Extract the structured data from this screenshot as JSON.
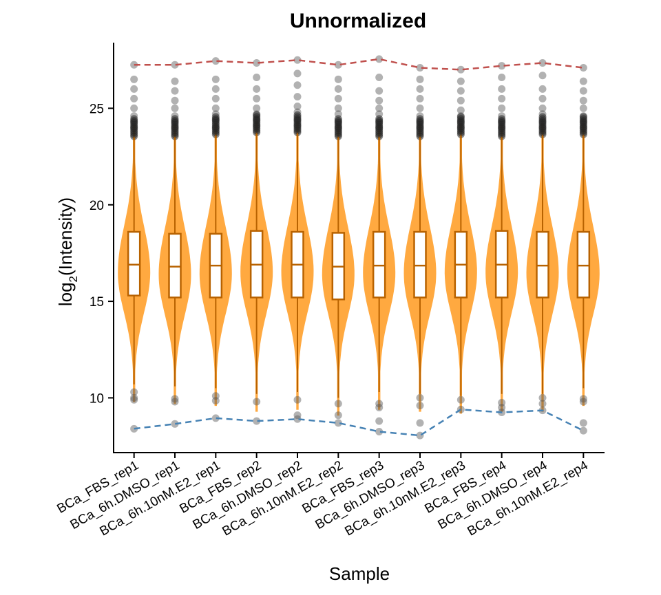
{
  "chart_data": {
    "type": "violin",
    "title": "Unnormalized",
    "xlabel": "Sample",
    "ylabel_main": "log",
    "ylabel_sub": "2",
    "ylabel_rest": "(Intensity)",
    "ylim": [
      7.2,
      28.4
    ],
    "yticks": [
      10,
      15,
      20,
      25
    ],
    "grid": false,
    "colors": {
      "violin_fill": "#ffa940",
      "box_line": "#b86200",
      "outlier": "#555555",
      "max_line": "#c0504d",
      "min_line": "#4682b4"
    },
    "categories": [
      "BCa_FBS_rep1",
      "BCa_6h.DMSO_rep1",
      "BCa_6h.10nM.E2_rep1",
      "BCa_FBS_rep2",
      "BCa_6h.DMSO_rep2",
      "BCa_6h.10nM.E2_rep2",
      "BCa_FBS_rep3",
      "BCa_6h.DMSO_rep3",
      "BCa_6h.10nM.E2_rep3",
      "BCa_FBS_rep4",
      "BCa_6h.DMSO_rep4",
      "BCa_6h.10nM.E2_rep4"
    ],
    "stats": [
      {
        "q1": 15.3,
        "median": 16.9,
        "q3": 18.6,
        "whisker_low": 10.7,
        "whisker_high": 23.5,
        "min": 8.4,
        "max": 27.25
      },
      {
        "q1": 15.2,
        "median": 16.8,
        "q3": 18.5,
        "whisker_low": 10.6,
        "whisker_high": 23.5,
        "min": 8.65,
        "max": 27.25
      },
      {
        "q1": 15.2,
        "median": 16.85,
        "q3": 18.5,
        "whisker_low": 10.5,
        "whisker_high": 23.6,
        "min": 8.95,
        "max": 27.45
      },
      {
        "q1": 15.2,
        "median": 16.9,
        "q3": 18.65,
        "whisker_low": 10.2,
        "whisker_high": 23.7,
        "min": 8.8,
        "max": 27.35
      },
      {
        "q1": 15.2,
        "median": 16.9,
        "q3": 18.6,
        "whisker_low": 10.3,
        "whisker_high": 23.7,
        "min": 8.9,
        "max": 27.5
      },
      {
        "q1": 15.1,
        "median": 16.8,
        "q3": 18.55,
        "whisker_low": 10.0,
        "whisker_high": 23.5,
        "min": 8.7,
        "max": 27.25
      },
      {
        "q1": 15.2,
        "median": 16.85,
        "q3": 18.6,
        "whisker_low": 10.3,
        "whisker_high": 23.5,
        "min": 8.25,
        "max": 27.55
      },
      {
        "q1": 15.2,
        "median": 16.85,
        "q3": 18.6,
        "whisker_low": 10.2,
        "whisker_high": 23.5,
        "min": 8.05,
        "max": 27.1
      },
      {
        "q1": 15.2,
        "median": 16.9,
        "q3": 18.6,
        "whisker_low": 10.1,
        "whisker_high": 23.6,
        "min": 9.4,
        "max": 27.0
      },
      {
        "q1": 15.2,
        "median": 16.9,
        "q3": 18.65,
        "whisker_low": 10.2,
        "whisker_high": 23.5,
        "min": 9.25,
        "max": 27.2
      },
      {
        "q1": 15.2,
        "median": 16.85,
        "q3": 18.6,
        "whisker_low": 10.2,
        "whisker_high": 23.6,
        "min": 9.35,
        "max": 27.35
      },
      {
        "q1": 15.2,
        "median": 16.85,
        "q3": 18.6,
        "whisker_low": 10.5,
        "whisker_high": 23.6,
        "min": 8.3,
        "max": 27.1
      }
    ],
    "outliers_high": [
      [
        24.0,
        24.3,
        24.6,
        25.0,
        25.5,
        26.0,
        26.5,
        27.25
      ],
      [
        24.0,
        24.3,
        24.6,
        25.0,
        25.4,
        25.9,
        26.4,
        27.25
      ],
      [
        24.0,
        24.4,
        24.7,
        25.0,
        25.5,
        26.0,
        26.5,
        27.45
      ],
      [
        24.1,
        24.4,
        24.7,
        25.0,
        25.5,
        26.0,
        26.6,
        27.35
      ],
      [
        24.1,
        24.4,
        24.8,
        25.1,
        25.6,
        26.2,
        26.8,
        27.5
      ],
      [
        24.0,
        24.3,
        24.7,
        25.0,
        25.5,
        26.0,
        26.5,
        27.25
      ],
      [
        24.0,
        24.3,
        24.7,
        25.0,
        25.4,
        25.9,
        26.6,
        27.55
      ],
      [
        24.0,
        24.3,
        24.6,
        25.0,
        25.5,
        26.0,
        26.5,
        27.1
      ],
      [
        24.0,
        24.3,
        24.6,
        24.9,
        25.4,
        25.9,
        26.4,
        27.0
      ],
      [
        24.0,
        24.3,
        24.6,
        25.0,
        25.5,
        26.0,
        26.6,
        27.2
      ],
      [
        24.0,
        24.3,
        24.7,
        25.0,
        25.5,
        26.0,
        26.7,
        27.35
      ],
      [
        24.0,
        24.3,
        24.6,
        25.0,
        25.4,
        25.9,
        26.4,
        27.1
      ]
    ],
    "outliers_low": [
      [
        10.0,
        10.3,
        9.9,
        8.4
      ],
      [
        9.95,
        9.8,
        8.65
      ],
      [
        10.1,
        9.85,
        8.95
      ],
      [
        9.8,
        8.8
      ],
      [
        9.9,
        9.1,
        8.9
      ],
      [
        9.7,
        9.1,
        8.7
      ],
      [
        9.7,
        9.5,
        8.8,
        8.25
      ],
      [
        10.0,
        9.6,
        8.7,
        8.05
      ],
      [
        9.9,
        9.4
      ],
      [
        9.75,
        9.5,
        9.25
      ],
      [
        10.0,
        9.7,
        9.35
      ],
      [
        9.95,
        9.8,
        8.7,
        8.3
      ]
    ]
  }
}
